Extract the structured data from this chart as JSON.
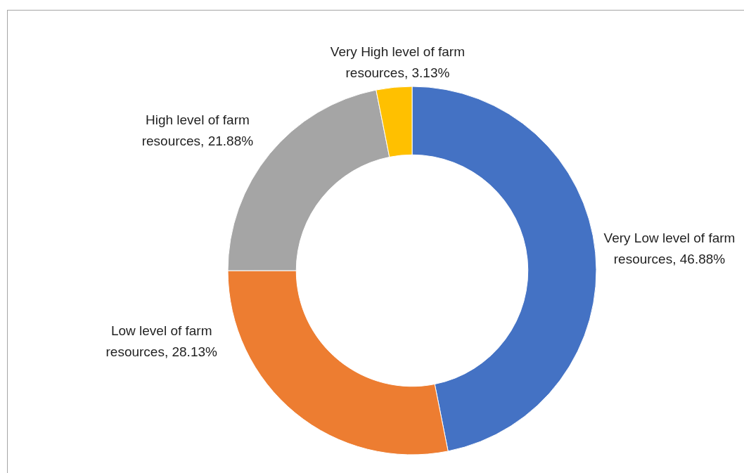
{
  "chart_data": {
    "type": "donut",
    "categories": [
      "Very Low level of farm resources",
      "Low level of farm resources",
      "High level of farm resources",
      "Very High level of farm resources"
    ],
    "values": [
      46.88,
      28.13,
      21.88,
      3.13
    ],
    "colors": [
      "#4472c4",
      "#ed7d31",
      "#a5a5a5",
      "#ffc000"
    ],
    "value_labels": [
      "46.88%",
      "28.13%",
      "21.88%",
      "3.13%"
    ]
  }
}
